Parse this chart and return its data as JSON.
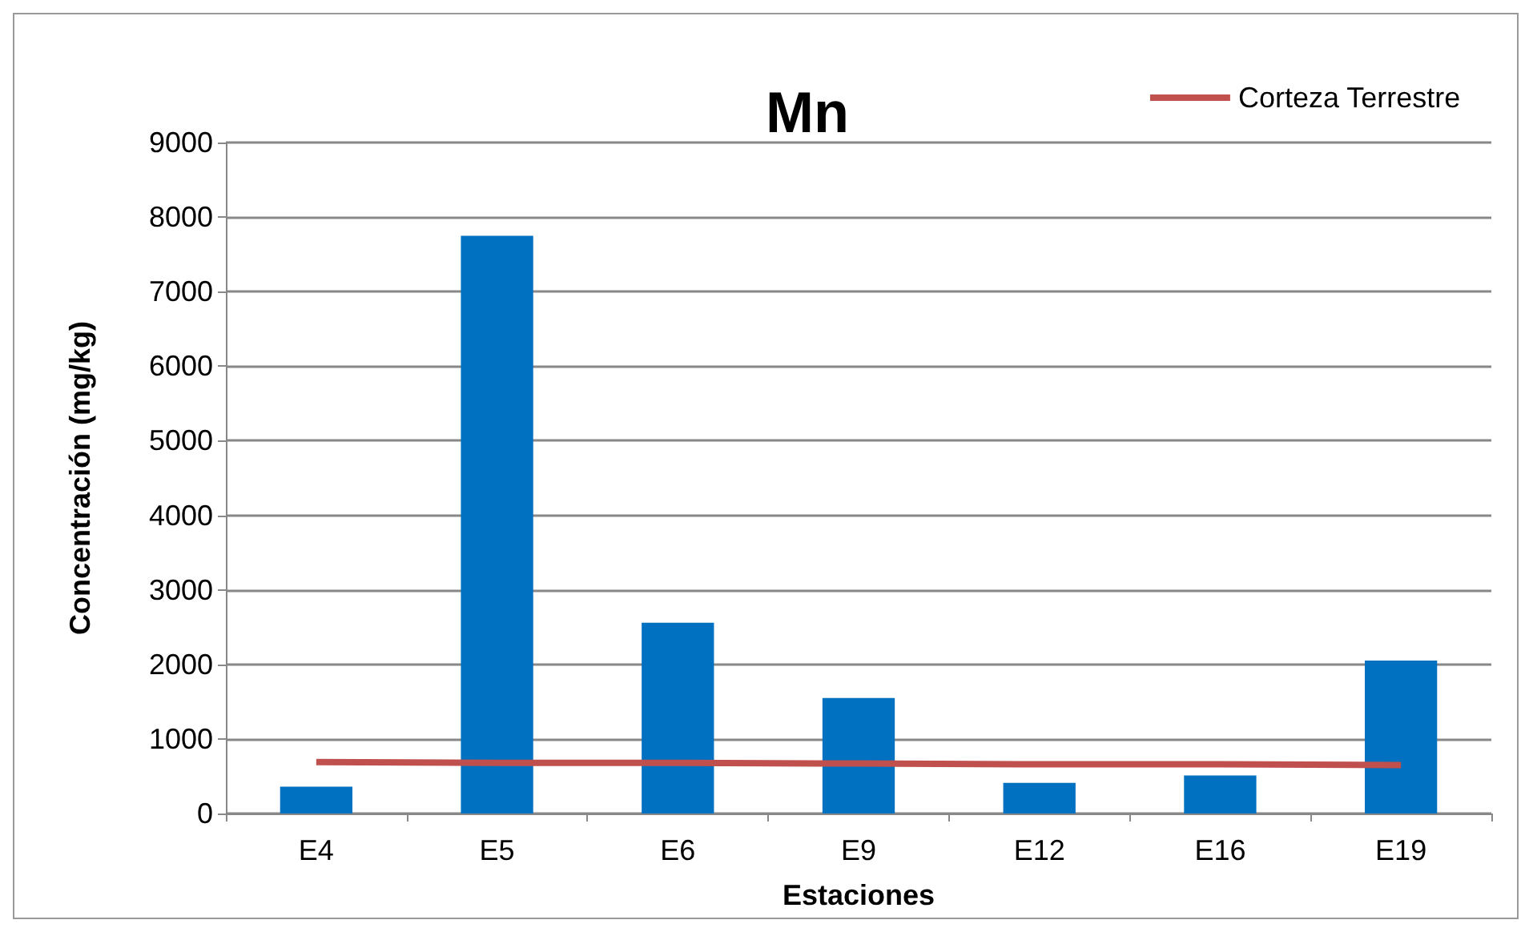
{
  "chart_data": {
    "type": "bar",
    "title": "Mn",
    "xlabel": "Estaciones",
    "ylabel": "Concentración (mg/kg)",
    "categories": [
      "E4",
      "E5",
      "E6",
      "E9",
      "E12",
      "E16",
      "E19"
    ],
    "series": [
      {
        "color": "#0070c0",
        "values": [
          360,
          7750,
          2560,
          1550,
          410,
          510,
          2050
        ]
      },
      {
        "type": "line",
        "name": "Corteza Terrestre",
        "color": "#c0504d",
        "values": [
          690,
          680,
          680,
          670,
          660,
          660,
          650
        ]
      }
    ],
    "ylim": [
      0,
      9000
    ],
    "yticks": [
      0,
      1000,
      2000,
      3000,
      4000,
      5000,
      6000,
      7000,
      8000,
      9000
    ],
    "grid": "y",
    "legend": "top right",
    "marker": "none"
  }
}
